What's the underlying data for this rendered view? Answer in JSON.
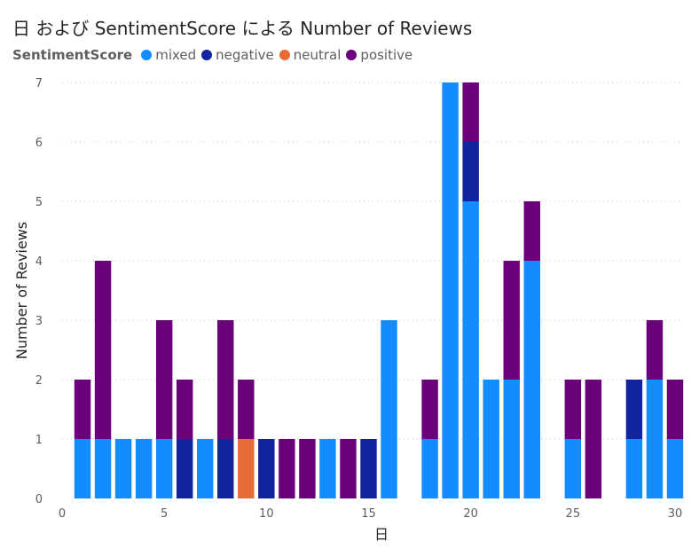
{
  "title": "日 および SentimentScore による Number of Reviews",
  "legend": {
    "title": "SentimentScore",
    "items": [
      {
        "label": "mixed",
        "color": "#118DFF"
      },
      {
        "label": "negative",
        "color": "#12239E"
      },
      {
        "label": "neutral",
        "color": "#E66C37"
      },
      {
        "label": "positive",
        "color": "#6B007B"
      }
    ]
  },
  "chart_data": {
    "type": "bar",
    "stacked": true,
    "xlabel": "日",
    "ylabel": "Number of Reviews",
    "xlim": [
      0,
      30
    ],
    "ylim": [
      0,
      7
    ],
    "x_ticks": [
      0,
      5,
      10,
      15,
      20,
      25,
      30
    ],
    "y_ticks": [
      0,
      1,
      2,
      3,
      4,
      5,
      6,
      7
    ],
    "grid": "horizontal-dotted",
    "categories": [
      1,
      2,
      3,
      4,
      5,
      6,
      7,
      8,
      9,
      10,
      11,
      12,
      13,
      14,
      15,
      16,
      17,
      18,
      19,
      20,
      21,
      22,
      23,
      24,
      25,
      26,
      27,
      28,
      29,
      30
    ],
    "series": [
      {
        "name": "mixed",
        "color": "#118DFF",
        "values": [
          1,
          1,
          1,
          1,
          1,
          0,
          1,
          0,
          0,
          0,
          0,
          0,
          1,
          0,
          0,
          3,
          0,
          1,
          7,
          5,
          2,
          2,
          4,
          0,
          1,
          0,
          0,
          1,
          2,
          1
        ]
      },
      {
        "name": "negative",
        "color": "#12239E",
        "values": [
          0,
          0,
          0,
          0,
          0,
          1,
          0,
          1,
          0,
          1,
          0,
          0,
          0,
          0,
          1,
          0,
          0,
          0,
          0,
          1,
          0,
          0,
          0,
          0,
          0,
          0,
          0,
          1,
          0,
          0
        ]
      },
      {
        "name": "neutral",
        "color": "#E66C37",
        "values": [
          0,
          0,
          0,
          0,
          0,
          0,
          0,
          0,
          1,
          0,
          0,
          0,
          0,
          0,
          0,
          0,
          0,
          0,
          0,
          0,
          0,
          0,
          0,
          0,
          0,
          0,
          0,
          0,
          0,
          0
        ]
      },
      {
        "name": "positive",
        "color": "#6B007B",
        "values": [
          1,
          3,
          0,
          0,
          2,
          1,
          0,
          2,
          1,
          0,
          1,
          1,
          0,
          1,
          0,
          0,
          0,
          1,
          0,
          1,
          0,
          2,
          1,
          0,
          1,
          2,
          0,
          0,
          1,
          1
        ]
      }
    ]
  }
}
